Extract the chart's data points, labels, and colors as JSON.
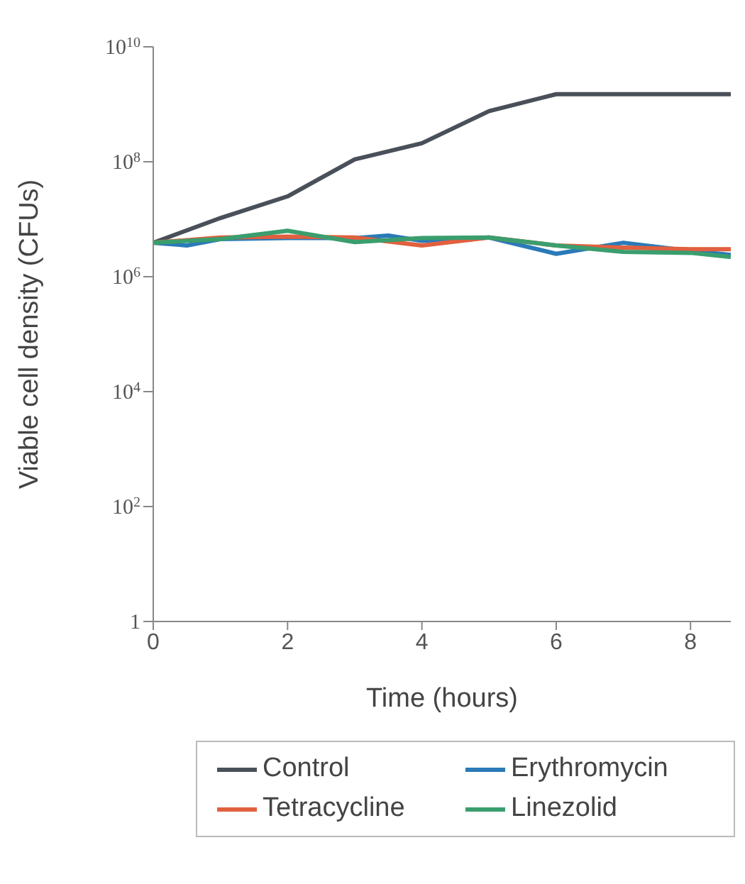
{
  "chart_data": {
    "type": "line",
    "xlabel": "Time (hours)",
    "ylabel": "Viable cell density (CFUs)",
    "log": "y",
    "xlim": [
      0,
      8.6
    ],
    "xticks": [
      0,
      2,
      4,
      6,
      8
    ],
    "ylim": [
      1,
      10000000000
    ],
    "yticks": [
      {
        "value": 1,
        "label": "1"
      },
      {
        "value": 100,
        "label": "10$^{2}$"
      },
      {
        "value": 10000,
        "label": "10$^{4}$"
      },
      {
        "value": 1000000,
        "label": "10$^{6}$"
      },
      {
        "value": 100000000,
        "label": "10$^{8}$"
      },
      {
        "value": 10000000000,
        "label": "10$^{10}$"
      }
    ],
    "legend": "bottom",
    "grid": false,
    "marker": "none",
    "line_style": "solid",
    "series": [
      {
        "name": "Control",
        "color": "#4a5059",
        "x": [
          0,
          1,
          2,
          3,
          4,
          5,
          6,
          7,
          8,
          8.6
        ],
        "values": [
          3900000,
          10500000,
          25000000,
          110000000,
          210000000,
          760000000,
          1500000000,
          1500000000,
          1500000000,
          1500000000
        ]
      },
      {
        "name": "Erythromycin",
        "color": "#2a7ab8",
        "x": [
          0,
          0.5,
          1,
          2,
          3,
          3.5,
          4,
          5,
          6,
          7,
          8,
          8.6
        ],
        "values": [
          3900000,
          3500000,
          4500000,
          4700000,
          4700000,
          5200000,
          4200000,
          4800000,
          2500000,
          3900000,
          2800000,
          2400000
        ]
      },
      {
        "name": "Tetracycline",
        "color": "#e0603f",
        "x": [
          0,
          1,
          2,
          3,
          4,
          5,
          6,
          7,
          8,
          8.6
        ],
        "values": [
          3900000,
          4800000,
          5000000,
          4800000,
          3500000,
          4800000,
          3500000,
          3200000,
          3000000,
          3000000
        ]
      },
      {
        "name": "Linezolid",
        "color": "#3a9e6e",
        "x": [
          0,
          1,
          2,
          3,
          4,
          5,
          6,
          7,
          8,
          8.6
        ],
        "values": [
          3900000,
          4500000,
          6300000,
          4000000,
          4700000,
          4800000,
          3500000,
          2700000,
          2600000,
          2200000
        ]
      }
    ]
  }
}
